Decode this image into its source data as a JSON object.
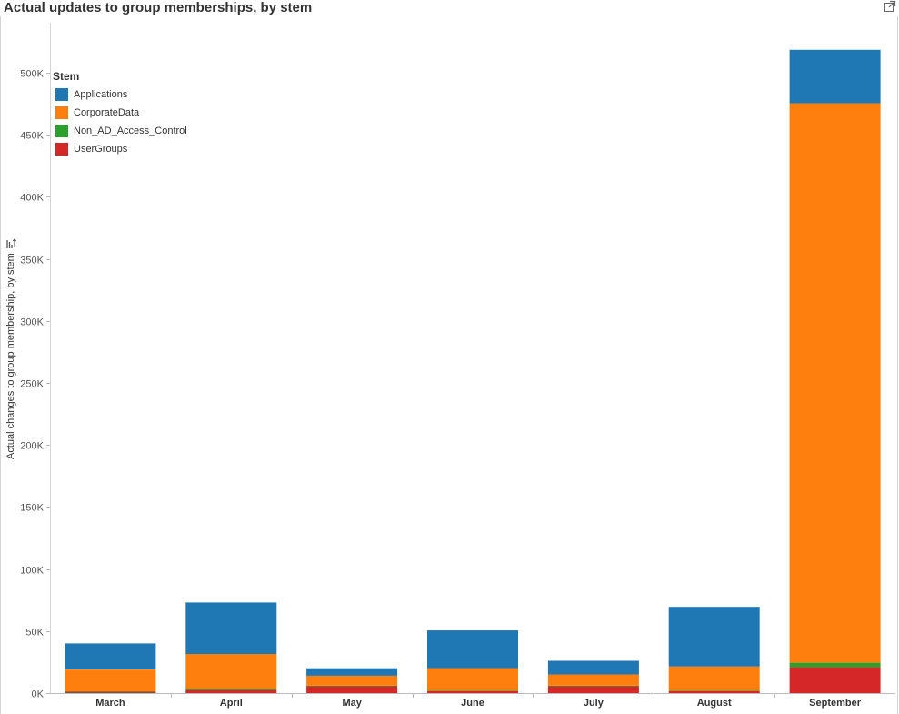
{
  "title": "Actual updates to group memberships, by stem",
  "icons": {
    "popout": "external-link-icon",
    "sort": "sort-icon"
  },
  "chart_data": {
    "type": "bar",
    "stacked": true,
    "title": "Actual updates to group memberships, by stem",
    "xlabel": "",
    "ylabel": "Actual changes to group membership, by stem",
    "ylim": [
      0,
      530000
    ],
    "yticks": [
      0,
      50000,
      100000,
      150000,
      200000,
      250000,
      300000,
      350000,
      400000,
      450000,
      500000
    ],
    "ytick_labels": [
      "0K",
      "50K",
      "100K",
      "150K",
      "200K",
      "250K",
      "300K",
      "350K",
      "400K",
      "450K",
      "500K"
    ],
    "categories": [
      "March",
      "April",
      "May",
      "June",
      "July",
      "August",
      "September"
    ],
    "legend": {
      "title": "Stem",
      "placement": "top-left"
    },
    "series": [
      {
        "name": "UserGroups",
        "color": "#d62728",
        "values": [
          1000,
          2500,
          5500,
          1500,
          5500,
          1500,
          21000
        ]
      },
      {
        "name": "Non_AD_Access_Control",
        "color": "#2ca02c",
        "values": [
          500,
          1000,
          500,
          500,
          500,
          500,
          3500
        ]
      },
      {
        "name": "CorporateData",
        "color": "#ff7f0e",
        "values": [
          17500,
          28000,
          8000,
          18000,
          9000,
          19500,
          451000
        ]
      },
      {
        "name": "Applications",
        "color": "#1f77b4",
        "values": [
          21000,
          41500,
          6000,
          30500,
          11000,
          48000,
          43000
        ]
      }
    ]
  }
}
